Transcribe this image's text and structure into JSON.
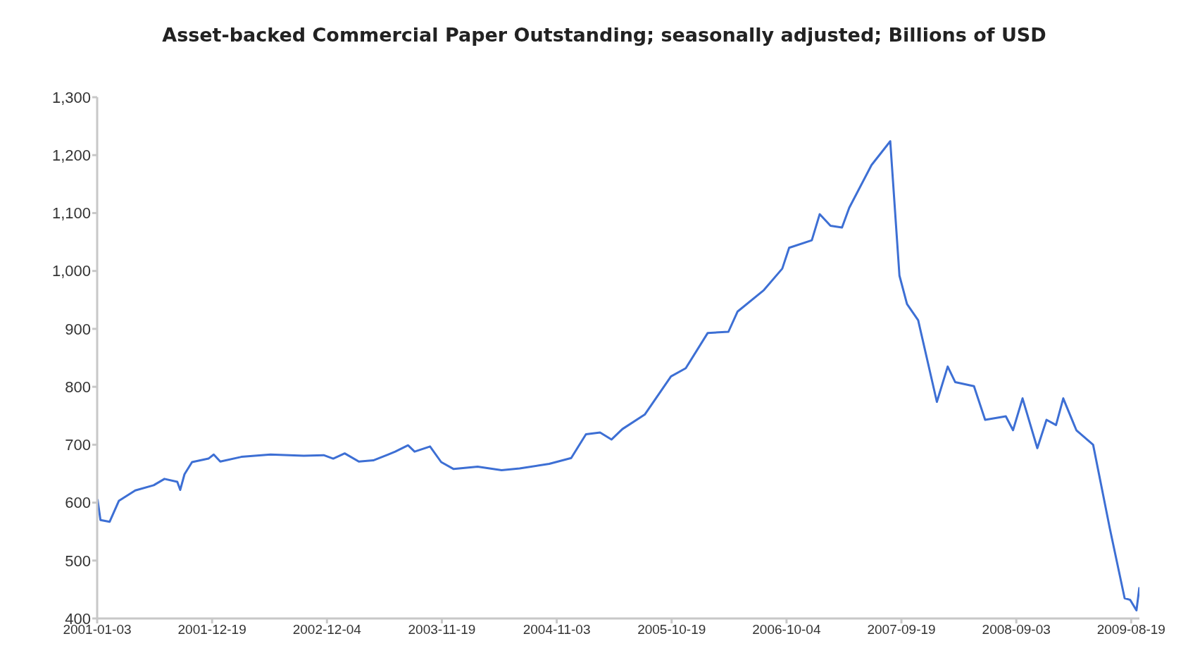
{
  "chart_data": {
    "type": "line",
    "title": "Asset-backed Commercial Paper Outstanding; seasonally adjusted; Billions of USD",
    "x": [
      "2001-01-04",
      "2001-01-13",
      "2001-02-10",
      "2001-03-10",
      "2001-04-29",
      "2001-06-24",
      "2001-07-27",
      "2001-09-04",
      "2001-09-13",
      "2001-09-26",
      "2001-10-19",
      "2001-12-08",
      "2001-12-24",
      "2002-01-13",
      "2002-03-18",
      "2002-06-15",
      "2002-09-24",
      "2002-11-24",
      "2002-12-23",
      "2003-01-27",
      "2003-03-11",
      "2003-04-24",
      "2003-06-08",
      "2003-06-30",
      "2003-08-08",
      "2003-08-28",
      "2003-10-14",
      "2003-11-17",
      "2003-12-25",
      "2004-03-07",
      "2004-05-19",
      "2004-07-13",
      "2004-10-11",
      "2004-12-17",
      "2005-01-31",
      "2005-03-15",
      "2005-04-19",
      "2005-05-22",
      "2005-07-29",
      "2005-10-17",
      "2005-12-01",
      "2006-02-06",
      "2006-04-10",
      "2006-05-08",
      "2006-07-27",
      "2006-09-21",
      "2006-10-12",
      "2006-12-20",
      "2007-01-13",
      "2007-02-15",
      "2007-03-22",
      "2007-04-13",
      "2007-06-20",
      "2007-08-16",
      "2007-09-13",
      "2007-10-06",
      "2007-11-09",
      "2008-01-05",
      "2008-02-07",
      "2008-03-01",
      "2008-04-27",
      "2008-05-31",
      "2008-08-02",
      "2008-08-24",
      "2008-09-22",
      "2008-11-06",
      "2008-12-04",
      "2009-01-02",
      "2009-01-24",
      "2009-03-05",
      "2009-04-25",
      "2009-06-15",
      "2009-07-30",
      "2009-08-16",
      "2009-09-04",
      "2009-09-13"
    ],
    "series": [
      {
        "color": "#3d6fd4",
        "values": [
          606,
          570,
          567,
          603,
          621,
          630,
          641,
          636,
          622,
          649,
          670,
          676,
          683,
          671,
          679,
          683,
          681,
          682,
          676,
          685,
          671,
          673,
          683,
          688,
          699,
          688,
          697,
          670,
          658,
          662,
          656,
          659,
          667,
          677,
          718,
          721,
          709,
          727,
          752,
          818,
          832,
          893,
          895,
          930,
          967,
          1004,
          1040,
          1053,
          1098,
          1078,
          1075,
          1109,
          1183,
          1224,
          992,
          943,
          915,
          774,
          835,
          808,
          801,
          743,
          749,
          725,
          780,
          694,
          743,
          734,
          780,
          725,
          700,
          555,
          435,
          432,
          414,
          454
        ]
      }
    ],
    "xlim": [
      "2001-01-03",
      "2009-09-13"
    ],
    "xticks": [
      "2001-01-03",
      "2001-12-19",
      "2002-12-04",
      "2003-11-19",
      "2004-11-03",
      "2005-10-19",
      "2006-10-04",
      "2007-09-19",
      "2008-09-03",
      "2009-08-19"
    ],
    "ylim": [
      400,
      1300
    ],
    "yticks": [
      400,
      500,
      600,
      700,
      800,
      900,
      {
        "value": 1000,
        "label": "1,000"
      },
      {
        "value": 1100,
        "label": "1,100"
      },
      {
        "value": 1200,
        "label": "1,200"
      },
      {
        "value": 1300,
        "label": "1,300"
      }
    ],
    "grid": false,
    "legend": false,
    "marker": "none",
    "line_style": "solid"
  }
}
